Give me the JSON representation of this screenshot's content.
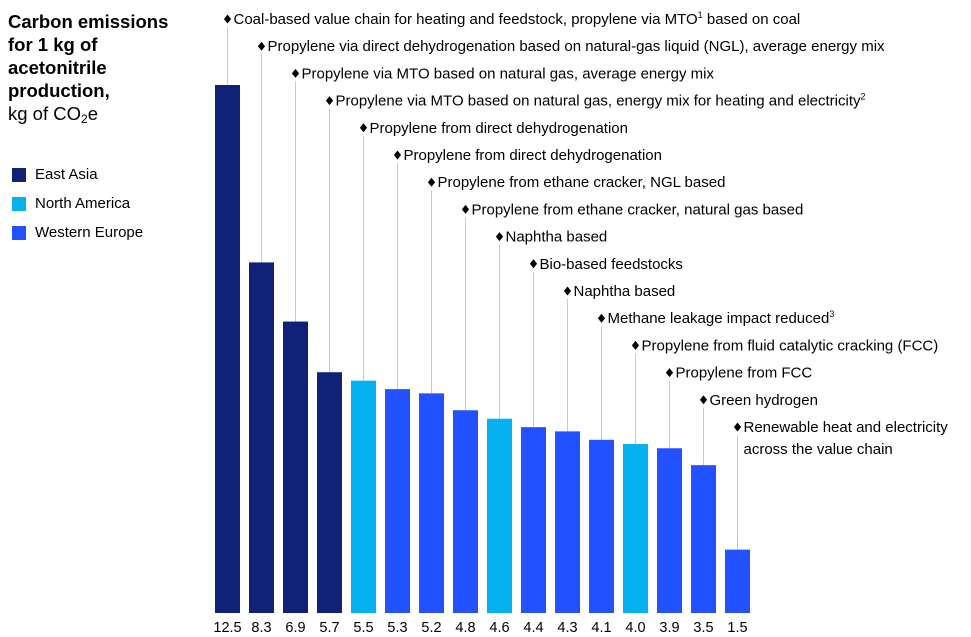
{
  "title": {
    "line1": "Carbon emissions",
    "line2": "for 1 kg of",
    "line3": "acetonitrile",
    "line4": "production,",
    "unit_prefix": "kg of CO",
    "unit_sub": "2",
    "unit_suffix": "e"
  },
  "legend": [
    {
      "label": "East Asia",
      "color": "#0f2278"
    },
    {
      "label": "North America",
      "color": "#05b2ef"
    },
    {
      "label": "Western Europe",
      "color": "#2251ff"
    }
  ],
  "chart_data": {
    "type": "bar",
    "ylim": [
      0,
      12.5
    ],
    "grid": false,
    "legend_position": "left",
    "series_colors": {
      "East Asia": "#0f2278",
      "North America": "#05b2ef",
      "Western Europe": "#2251ff"
    },
    "bars": [
      {
        "value": 12.5,
        "value_label": "12.5",
        "region": "East Asia",
        "annotation": "Coal-based value chain for heating and feedstock, propylene via MTO",
        "sup": "1",
        "annotation_after": " based on coal"
      },
      {
        "value": 8.3,
        "value_label": "8.3",
        "region": "East Asia",
        "annotation": "Propylene via direct dehydrogenation based on natural-gas liquid (NGL), average energy mix"
      },
      {
        "value": 6.9,
        "value_label": "6.9",
        "region": "East Asia",
        "annotation": "Propylene via MTO based on natural gas, average energy mix"
      },
      {
        "value": 5.7,
        "value_label": "5.7",
        "region": "East Asia",
        "annotation": "Propylene via MTO based on natural gas, energy mix for heating and electricity",
        "sup": "2"
      },
      {
        "value": 5.5,
        "value_label": "5.5",
        "region": "North America",
        "annotation": "Propylene from direct dehydrogenation"
      },
      {
        "value": 5.3,
        "value_label": "5.3",
        "region": "Western Europe",
        "annotation": "Propylene from direct dehydrogenation"
      },
      {
        "value": 5.2,
        "value_label": "5.2",
        "region": "Western Europe",
        "annotation": "Propylene from ethane cracker, NGL based"
      },
      {
        "value": 4.8,
        "value_label": "4.8",
        "region": "Western Europe",
        "annotation": "Propylene from ethane cracker, natural gas based"
      },
      {
        "value": 4.6,
        "value_label": "4.6",
        "region": "North America",
        "annotation": "Naphtha based"
      },
      {
        "value": 4.4,
        "value_label": "4.4",
        "region": "Western Europe",
        "annotation": "Bio-based feedstocks"
      },
      {
        "value": 4.3,
        "value_label": "4.3",
        "region": "Western Europe",
        "annotation": "Naphtha based"
      },
      {
        "value": 4.1,
        "value_label": "4.1",
        "region": "Western Europe",
        "annotation": "Methane leakage impact reduced",
        "sup": "3"
      },
      {
        "value": 4.0,
        "value_label": "4.0",
        "region": "North America",
        "annotation": "Propylene from fluid catalytic cracking (FCC)"
      },
      {
        "value": 3.9,
        "value_label": "3.9",
        "region": "Western Europe",
        "annotation": "Propylene from FCC"
      },
      {
        "value": 3.5,
        "value_label": "3.5",
        "region": "Western Europe",
        "annotation": "Green hydrogen"
      },
      {
        "value": 1.5,
        "value_label": "1.5",
        "region": "Western Europe",
        "annotation": "Renewable heat and electricity",
        "annotation_line2": "across the value chain"
      }
    ]
  }
}
